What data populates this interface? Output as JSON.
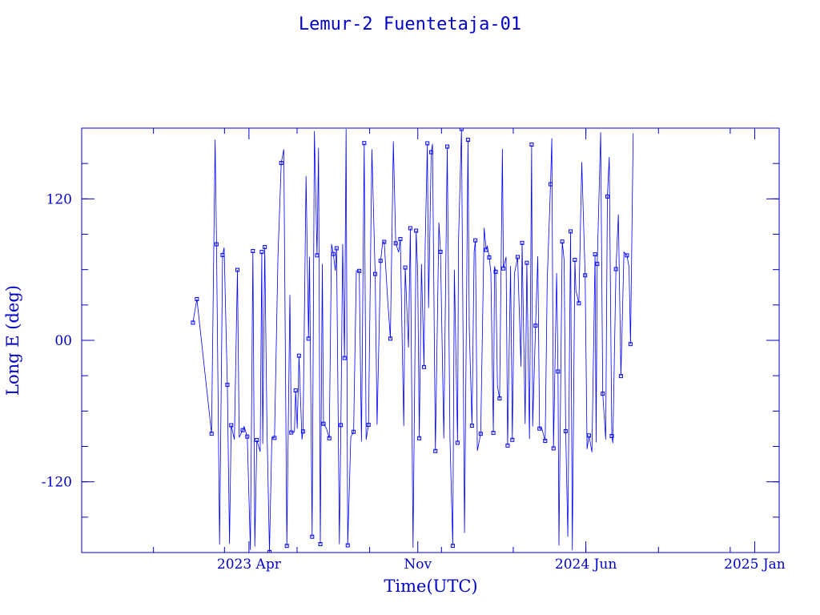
{
  "chart_data": {
    "type": "scatter",
    "title": "Lemur-2 Fuentetaja-01",
    "xlabel": "Time(UTC)",
    "ylabel": "Long E (deg)",
    "ylim": [
      -180,
      180
    ],
    "xlim": [
      "2022-09-01",
      "2025-02-01"
    ],
    "x_ticks": [
      {
        "date": "2023-04-01",
        "label": "2023 Apr"
      },
      {
        "date": "2023-11-01",
        "label": "Nov"
      },
      {
        "date": "2024-06-01",
        "label": "2024 Jun"
      },
      {
        "date": "2025-01-01",
        "label": "2025 Jan"
      }
    ],
    "y_ticks": [
      {
        "value": 120,
        "label": "120"
      },
      {
        "value": 0,
        "label": "00"
      },
      {
        "value": -120,
        "label": "-120"
      }
    ],
    "series": [
      {
        "color": "#0000ff",
        "connected": true,
        "marker": "square",
        "date_range": [
          "2023-01-20",
          "2024-07-31"
        ],
        "points_sample": [
          {
            "x": "2023-01-20",
            "y": 15
          },
          {
            "x": "2023-01-25",
            "y": 35
          },
          {
            "x": "2023-02-05",
            "y": 130
          },
          {
            "x": "2023-02-12",
            "y": -10
          },
          {
            "x": "2023-03-01",
            "y": -95
          },
          {
            "x": "2023-04-15",
            "y": 65
          },
          {
            "x": "2023-06-01",
            "y": -85
          },
          {
            "x": "2023-08-01",
            "y": 60
          },
          {
            "x": "2023-09-15",
            "y": -80
          },
          {
            "x": "2023-11-01",
            "y": 0
          },
          {
            "x": "2024-01-01",
            "y": 75
          },
          {
            "x": "2024-02-15",
            "y": -85
          },
          {
            "x": "2024-04-01",
            "y": 70
          },
          {
            "x": "2024-05-15",
            "y": -90
          },
          {
            "x": "2024-07-31",
            "y": 65
          }
        ]
      }
    ]
  }
}
